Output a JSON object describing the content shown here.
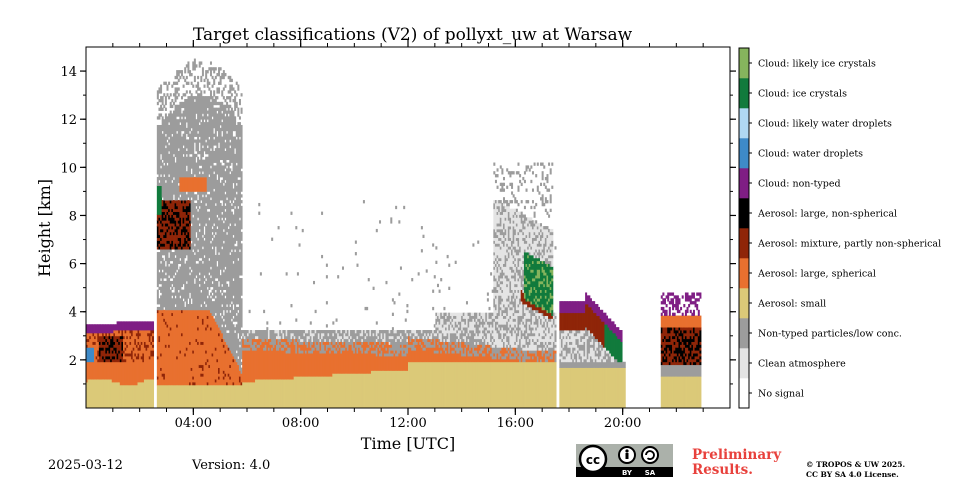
{
  "chart_data": {
    "type": "heatmap",
    "title": "Target classifications (V2) of pollyxt_uw at Warsaw",
    "xlabel": "Time [UTC]",
    "ylabel": "Height [km]",
    "xlim_hours": [
      0,
      24
    ],
    "ylim_km": [
      0,
      15
    ],
    "x_ticks": [
      {
        "value": 4,
        "label": "04:00"
      },
      {
        "value": 8,
        "label": "08:00"
      },
      {
        "value": 12,
        "label": "12:00"
      },
      {
        "value": 16,
        "label": "16:00"
      },
      {
        "value": 20,
        "label": "20:00"
      }
    ],
    "y_ticks": [
      {
        "value": 2,
        "label": "2"
      },
      {
        "value": 4,
        "label": "4"
      },
      {
        "value": 6,
        "label": "6"
      },
      {
        "value": 8,
        "label": "8"
      },
      {
        "value": 10,
        "label": "10"
      },
      {
        "value": 12,
        "label": "12"
      },
      {
        "value": 14,
        "label": "14"
      }
    ],
    "classes": [
      {
        "label": "No signal",
        "color": "#ffffff"
      },
      {
        "label": "Clean atmosphere",
        "color": "#e4e4e4"
      },
      {
        "label": "Non-typed particles/low conc.",
        "color": "#9c9c9c"
      },
      {
        "label": "Aerosol: small",
        "color": "#dbc978"
      },
      {
        "label": "Aerosol: large, spherical",
        "color": "#e8702f"
      },
      {
        "label": "Aerosol: mixture, partly non-spherical",
        "color": "#8f2508"
      },
      {
        "label": "Aerosol: large, non-spherical",
        "color": "#000000"
      },
      {
        "label": "Cloud: non-typed",
        "color": "#7f1e84"
      },
      {
        "label": "Cloud: water droplets",
        "color": "#3e8ac8"
      },
      {
        "label": "Cloud: likely water droplets",
        "color": "#b0d8f3"
      },
      {
        "label": "Cloud: ice crystals",
        "color": "#117a3c"
      },
      {
        "label": "Cloud: likely ice crystals",
        "color": "#86b45d"
      }
    ],
    "no_data_gaps_hours": [
      [
        2.52,
        2.64
      ],
      [
        17.52,
        17.62
      ],
      [
        20.1,
        21.4
      ],
      [
        22.9,
        24
      ]
    ]
  },
  "footer": {
    "date": "2025-03-12",
    "version": "Version: 4.0",
    "preliminary_line1": "Preliminary",
    "preliminary_line2": "Results.",
    "copyright_line1": "© TROPOS & UW 2025.",
    "copyright_line2": "CC BY SA 4.0 License.",
    "license_badge": "cc-by-sa-badge"
  }
}
